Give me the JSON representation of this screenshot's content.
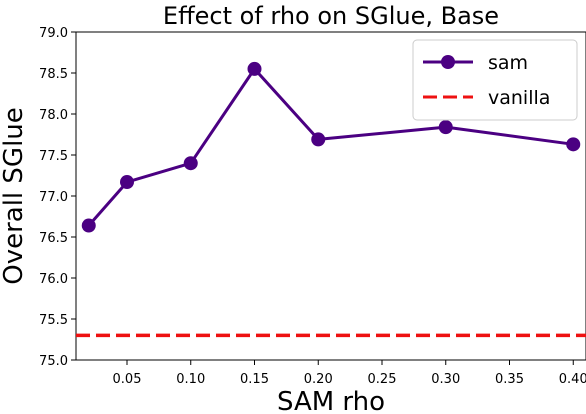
{
  "chart_data": {
    "type": "line",
    "title": "Effect of rho on SGlue, Base",
    "xlabel": "SAM rho",
    "ylabel": "Overall SGlue",
    "xlim": [
      0.01,
      0.41
    ],
    "ylim": [
      75.0,
      79.0
    ],
    "x_ticks": [
      "0.05",
      "0.10",
      "0.15",
      "0.20",
      "0.25",
      "0.30",
      "0.35",
      "0.40"
    ],
    "y_ticks": [
      "75.0",
      "75.5",
      "76.0",
      "76.5",
      "77.0",
      "77.5",
      "78.0",
      "78.5",
      "79.0"
    ],
    "grid": false,
    "legend_position": "top-right",
    "series": [
      {
        "name": "sam",
        "color": "#4b0082",
        "style": "solid-with-circle-markers",
        "x": [
          0.02,
          0.05,
          0.1,
          0.15,
          0.2,
          0.3,
          0.4
        ],
        "y": [
          76.64,
          77.17,
          77.4,
          78.55,
          77.69,
          77.84,
          77.63
        ]
      },
      {
        "name": "vanilla",
        "color": "#ee1111",
        "style": "dashed-horizontal",
        "y_const": 75.3
      }
    ]
  }
}
